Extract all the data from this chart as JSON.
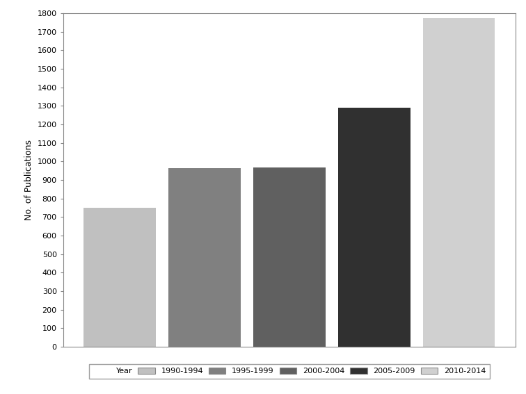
{
  "categories": [
    "1990-1994",
    "1995-1999",
    "2000-2004",
    "2005-2009",
    "2010-2014"
  ],
  "values": [
    750,
    965,
    968,
    1290,
    1775
  ],
  "bar_colors": [
    "#c0c0c0",
    "#808080",
    "#606060",
    "#303030",
    "#d0d0d0"
  ],
  "ylabel": "No. of Publications",
  "ylim": [
    0,
    1800
  ],
  "yticks": [
    0,
    100,
    200,
    300,
    400,
    500,
    600,
    700,
    800,
    900,
    1000,
    1100,
    1200,
    1300,
    1400,
    1500,
    1600,
    1700,
    1800
  ],
  "legend_label": "Year",
  "background_color": "#ffffff",
  "bar_edge_color": "#aaaaaa",
  "bar_width": 0.85
}
